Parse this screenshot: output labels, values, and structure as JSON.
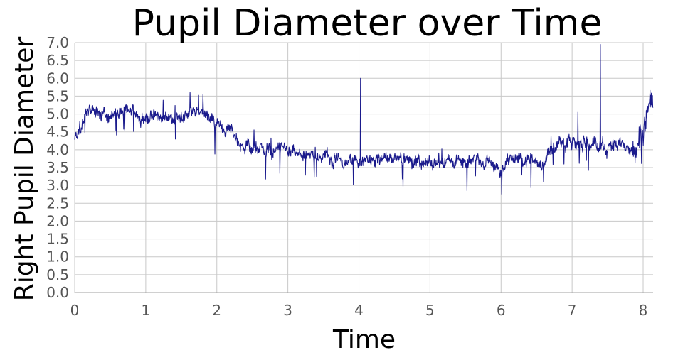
{
  "chart_data": {
    "type": "line",
    "title": "Pupil Diameter over Time",
    "xlabel": "Time",
    "ylabel": "Right Pupil Diameter",
    "xlim": [
      0,
      8.14
    ],
    "ylim": [
      0,
      7
    ],
    "x_ticks": [
      "0",
      "1",
      "2",
      "3",
      "4",
      "5",
      "6",
      "7",
      "8"
    ],
    "x_tick_values": [
      0,
      1,
      2,
      3,
      4,
      5,
      6,
      7,
      8
    ],
    "y_ticks": [
      "0.0",
      "0.5",
      "1.0",
      "1.5",
      "2.0",
      "2.5",
      "3.0",
      "3.5",
      "4.0",
      "4.5",
      "5.0",
      "5.5",
      "6.0",
      "6.5",
      "7.0"
    ],
    "y_tick_values": [
      0,
      0.5,
      1.0,
      1.5,
      2.0,
      2.5,
      3.0,
      3.5,
      4.0,
      4.5,
      5.0,
      5.5,
      6.0,
      6.5,
      7.0
    ],
    "grid": true,
    "legend": "none",
    "line_color": "#1a1a8c",
    "series": [
      {
        "x": [
          0.0,
          0.05,
          0.1,
          0.15,
          0.2,
          0.3,
          0.4,
          0.5,
          0.6,
          0.7,
          0.8,
          0.9,
          1.0,
          1.1,
          1.2,
          1.3,
          1.4,
          1.5,
          1.6,
          1.7,
          1.8,
          1.9,
          2.0,
          2.1,
          2.2,
          2.3,
          2.4,
          2.5,
          2.6,
          2.7,
          2.8,
          2.9,
          3.0,
          3.2,
          3.4,
          3.6,
          3.8,
          4.0,
          4.2,
          4.4,
          4.6,
          4.8,
          5.0,
          5.2,
          5.4,
          5.6,
          5.8,
          5.9,
          6.0,
          6.1,
          6.2,
          6.3,
          6.4,
          6.5,
          6.6,
          6.7,
          6.8,
          6.9,
          7.0,
          7.1,
          7.2,
          7.3,
          7.4,
          7.5,
          7.6,
          7.7,
          7.8,
          7.85,
          7.9,
          7.95,
          8.0,
          8.05,
          8.1
        ],
        "y": [
          4.3,
          4.5,
          4.6,
          4.9,
          5.1,
          5.05,
          5.0,
          5.0,
          5.0,
          5.05,
          5.0,
          4.95,
          4.95,
          4.9,
          4.85,
          4.9,
          4.8,
          5.0,
          5.05,
          5.0,
          5.05,
          4.9,
          4.75,
          4.65,
          4.5,
          4.3,
          4.15,
          4.1,
          4.0,
          3.95,
          3.9,
          3.95,
          3.9,
          3.85,
          3.8,
          3.8,
          3.7,
          3.65,
          3.65,
          3.7,
          3.8,
          3.6,
          3.65,
          3.7,
          3.65,
          3.75,
          3.65,
          3.55,
          3.4,
          3.75,
          3.75,
          3.7,
          3.8,
          3.7,
          3.7,
          4.0,
          4.15,
          4.1,
          4.15,
          4.2,
          4.2,
          4.15,
          4.1,
          4.1,
          4.15,
          4.15,
          4.1,
          4.1,
          4.0,
          4.5,
          4.4,
          5.2,
          5.5
        ],
        "spikes": [
          {
            "x": 4.02,
            "y": 6.0
          },
          {
            "x": 7.4,
            "y": 6.95
          },
          {
            "x": 7.08,
            "y": 5.05
          }
        ]
      }
    ]
  }
}
